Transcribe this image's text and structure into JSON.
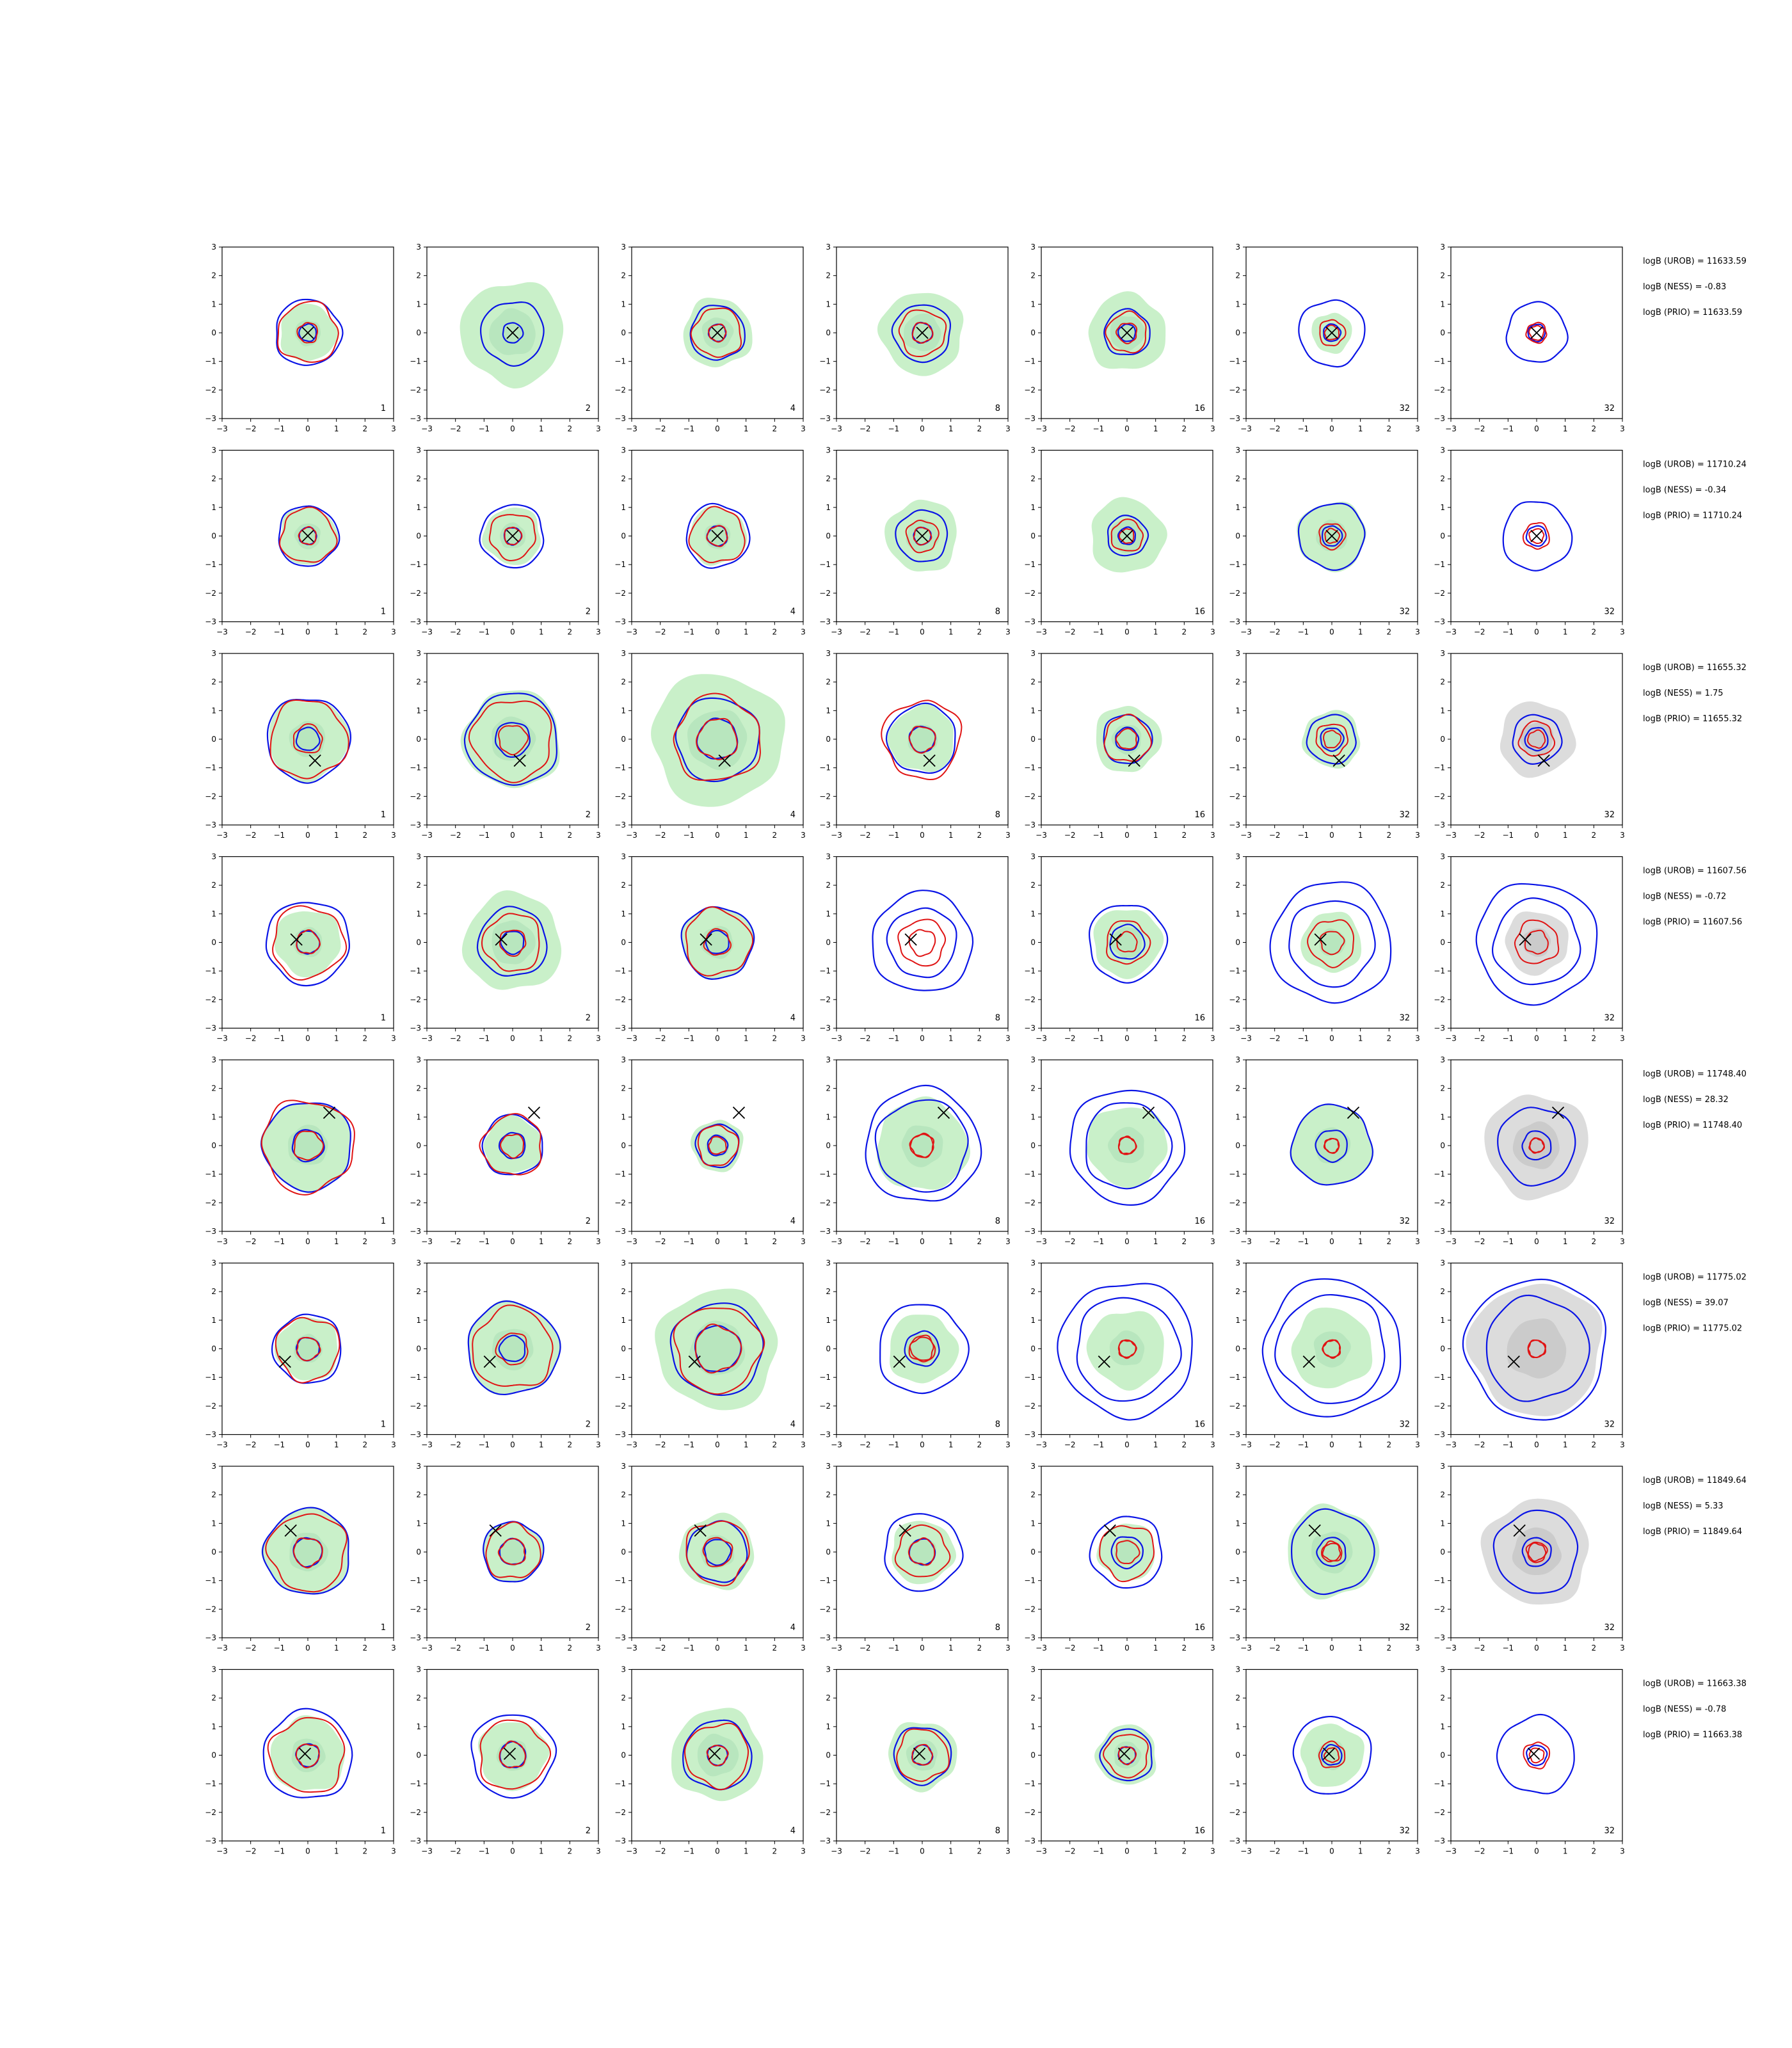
{
  "colors": {
    "sample_fill": "#c9f0c9",
    "sample_fill_core": "#a9dfb4",
    "prior_fill": "#dcdcdc",
    "prior_fill_core": "#bdbdbd",
    "contour_blue": "#0a14e6",
    "contour_red": "#e01414",
    "marker": "#000000"
  },
  "chart_data": {
    "type": "contour-grid",
    "rows": 8,
    "cols": 7,
    "xlim": [
      -3,
      3
    ],
    "ylim": [
      -3,
      3
    ],
    "xticks": [
      "−3",
      "−2",
      "−1",
      "0",
      "1",
      "2",
      "3"
    ],
    "yticks": [
      "3",
      "2",
      "1",
      "0",
      "−1",
      "−2",
      "−3"
    ],
    "column_labels": [
      "1",
      "2",
      "4",
      "8",
      "16",
      "32",
      "32"
    ],
    "rows_data": [
      {
        "marker": [
          0,
          0
        ],
        "annotations": [
          "logB (UROB) = 11633.59",
          "logB (NESS) = -0.83",
          "logB (PRIO) = 11633.59"
        ],
        "panels": [
          {
            "fill": 1.0,
            "blue": [
              1.15,
              0.3
            ],
            "red": [
              1.05,
              0.35
            ]
          },
          {
            "fill": 1.8,
            "blue": [
              1.1,
              0.35
            ],
            "red": []
          },
          {
            "fill": 1.2,
            "blue": [
              0.95,
              0.3
            ],
            "red": [
              0.85,
              0.3
            ]
          },
          {
            "fill": 1.45,
            "blue": [
              1.0,
              0.35
            ],
            "red": [
              0.8,
              0.35
            ]
          },
          {
            "fill": 1.35,
            "blue": [
              0.8,
              0.3
            ],
            "red": [
              0.7,
              0.35
            ]
          },
          {
            "fill": 0.7,
            "blue": [
              1.15,
              0.3
            ],
            "red": [
              0.45,
              0.25
            ]
          },
          {
            "fill": 0.0,
            "blue": [
              1.05,
              0.3
            ],
            "red": [
              0.35,
              0.25
            ]
          }
        ]
      },
      {
        "marker": [
          0,
          0
        ],
        "annotations": [
          "logB (UROB) = 11710.24",
          "logB (NESS) = -0.34",
          "logB (PRIO) = 11710.24"
        ],
        "panels": [
          {
            "fill": 1.0,
            "blue": [
              1.05,
              0.3
            ],
            "red": [
              0.95,
              0.3
            ]
          },
          {
            "fill": 1.0,
            "blue": [
              1.1,
              0.3
            ],
            "red": [
              0.8,
              0.3
            ]
          },
          {
            "fill": 1.0,
            "blue": [
              1.1,
              0.35
            ],
            "red": [
              0.95,
              0.35
            ]
          },
          {
            "fill": 1.25,
            "blue": [
              0.9,
              0.3
            ],
            "red": [
              0.55,
              0.3
            ]
          },
          {
            "fill": 1.3,
            "blue": [
              0.7,
              0.3
            ],
            "red": [
              0.55,
              0.25
            ]
          },
          {
            "fill": 1.2,
            "blue": [
              1.15,
              0.35
            ],
            "red": [
              0.45,
              0.25
            ]
          },
          {
            "fill": 0.0,
            "blue": [
              1.2,
              0.35
            ],
            "red": [
              0.45,
              0.25
            ]
          }
        ]
      },
      {
        "marker": [
          0.25,
          -0.75
        ],
        "annotations": [
          "logB (UROB) = 11655.32",
          "logB (NESS) = 1.75",
          "logB (PRIO) = 11655.32"
        ],
        "panels": [
          {
            "fill": 1.4,
            "blue": [
              1.45,
              0.4
            ],
            "red": [
              1.35,
              0.5
            ]
          },
          {
            "fill": 1.7,
            "blue": [
              1.6,
              0.6
            ],
            "red": [
              1.4,
              0.5
            ]
          },
          {
            "fill": 2.3,
            "blue": [
              1.45,
              0.7
            ],
            "red": [
              1.5,
              0.7
            ]
          },
          {
            "fill": 1.15,
            "blue": [
              1.2,
              0.45
            ],
            "red": [
              1.35,
              0.45
            ]
          },
          {
            "fill": 1.15,
            "blue": [
              0.85,
              0.4
            ],
            "red": [
              0.8,
              0.35
            ]
          },
          {
            "fill": 1.0,
            "blue": [
              0.85,
              0.4
            ],
            "red": [
              0.55,
              0.3
            ]
          },
          {
            "fill": 1.3,
            "blue": [
              0.85,
              0.4
            ],
            "red": [
              0.6,
              0.3
            ],
            "prior": true
          }
        ]
      },
      {
        "marker": [
          -0.4,
          0.1
        ],
        "annotations": [
          "logB (UROB) = 11607.56",
          "logB (NESS) = -0.72",
          "logB (PRIO) = 11607.56"
        ],
        "panels": [
          {
            "fill": 1.15,
            "blue": [
              1.45,
              0.4
            ],
            "red": [
              1.25,
              0.4
            ]
          },
          {
            "fill": 1.7,
            "blue": [
              1.2,
              0.4
            ],
            "red": [
              1.0,
              0.45
            ]
          },
          {
            "fill": 1.25,
            "blue": [
              1.25,
              0.4
            ],
            "red": [
              1.15,
              0.45
            ]
          },
          {
            "fill": 0.0,
            "blue": [
              1.75,
              1.2
            ],
            "red": [
              0.8,
              0.45
            ]
          },
          {
            "fill": 1.2,
            "blue": [
              1.35,
              0.6
            ],
            "red": [
              0.75,
              0.35
            ]
          },
          {
            "fill": 1.05,
            "blue": [
              2.1,
              1.5
            ],
            "red": [
              0.8,
              0.4
            ]
          },
          {
            "fill": 1.1,
            "blue": [
              2.1,
              1.5
            ],
            "red": [
              0.75,
              0.4
            ],
            "prior": true
          }
        ]
      },
      {
        "marker": [
          0.75,
          1.15
        ],
        "annotations": [
          "logB (UROB) = 11748.40",
          "logB (NESS) = 28.32",
          "logB (PRIO) = 11748.40"
        ],
        "panels": [
          {
            "fill": 1.55,
            "blue": [
              1.55,
              0.55
            ],
            "red": [
              1.6,
              0.5
            ]
          },
          {
            "fill": 1.0,
            "blue": [
              1.05,
              0.45
            ],
            "red": [
              1.05,
              0.4
            ]
          },
          {
            "fill": 0.9,
            "blue": [
              0.75,
              0.35
            ],
            "red": [
              0.7,
              0.3
            ]
          },
          {
            "fill": 1.6,
            "blue": [
              2.0,
              1.6
            ],
            "red": [
              0.4,
              0.4
            ]
          },
          {
            "fill": 1.4,
            "blue": [
              2.0,
              1.5
            ],
            "red": [
              0.3,
              0.3
            ]
          },
          {
            "fill": 1.4,
            "blue": [
              1.4,
              0.55
            ],
            "red": [
              0.25,
              0.25
            ]
          },
          {
            "fill": 1.8,
            "blue": [
              1.35,
              0.5
            ],
            "red": [
              0.25,
              0.25
            ],
            "prior": true
          }
        ]
      },
      {
        "marker": [
          -0.8,
          -0.45
        ],
        "annotations": [
          "logB (UROB) = 11775.02",
          "logB (NESS) = 39.07",
          "logB (PRIO) = 11775.02"
        ],
        "panels": [
          {
            "fill": 1.1,
            "blue": [
              1.2,
              0.4
            ],
            "red": [
              1.1,
              0.4
            ]
          },
          {
            "fill": 1.6,
            "blue": [
              1.6,
              0.45
            ],
            "red": [
              1.4,
              0.55
            ]
          },
          {
            "fill": 2.1,
            "blue": [
              1.6,
              0.8
            ],
            "red": [
              1.5,
              0.8
            ]
          },
          {
            "fill": 1.2,
            "blue": [
              1.55,
              0.6
            ],
            "red": [
              0.45,
              0.4
            ]
          },
          {
            "fill": 1.35,
            "blue": [
              2.35,
              1.8
            ],
            "red": [
              0.3,
              0.3
            ]
          },
          {
            "fill": 1.4,
            "blue": [
              2.4,
              1.9
            ],
            "red": [
              0.3,
              0.3
            ]
          },
          {
            "fill": 2.3,
            "blue": [
              2.45,
              1.8
            ],
            "red": [
              0.3,
              0.3
            ],
            "prior": true
          }
        ]
      },
      {
        "marker": [
          -0.6,
          0.75
        ],
        "annotations": [
          "logB (UROB) = 11849.64",
          "logB (NESS) = 5.33",
          "logB (PRIO) = 11849.64"
        ],
        "panels": [
          {
            "fill": 1.5,
            "blue": [
              1.5,
              0.5
            ],
            "red": [
              1.35,
              0.5
            ]
          },
          {
            "fill": 1.05,
            "blue": [
              1.05,
              0.45
            ],
            "red": [
              0.95,
              0.45
            ]
          },
          {
            "fill": 1.3,
            "blue": [
              1.05,
              0.45
            ],
            "red": [
              1.1,
              0.5
            ]
          },
          {
            "fill": 1.1,
            "blue": [
              1.35,
              0.45
            ],
            "red": [
              0.9,
              0.45
            ]
          },
          {
            "fill": 1.0,
            "blue": [
              1.25,
              0.55
            ],
            "red": [
              0.95,
              0.4
            ]
          },
          {
            "fill": 1.6,
            "blue": [
              1.45,
              0.5
            ],
            "red": [
              0.35,
              0.3
            ]
          },
          {
            "fill": 1.85,
            "blue": [
              1.45,
              0.5
            ],
            "red": [
              0.35,
              0.3
            ],
            "prior": true
          }
        ]
      },
      {
        "marker": [
          -0.1,
          0.05
        ],
        "annotations": [
          "logB (UROB) = 11663.38",
          "logB (NESS) = -0.78",
          "logB (PRIO) = 11663.38"
        ],
        "panels": [
          {
            "fill": 1.3,
            "blue": [
              1.55,
              0.4
            ],
            "red": [
              1.3,
              0.4
            ]
          },
          {
            "fill": 1.2,
            "blue": [
              1.45,
              0.45
            ],
            "red": [
              1.2,
              0.45
            ]
          },
          {
            "fill": 1.6,
            "blue": [
              1.2,
              0.35
            ],
            "red": [
              1.1,
              0.35
            ]
          },
          {
            "fill": 1.2,
            "blue": [
              1.0,
              0.35
            ],
            "red": [
              0.9,
              0.35
            ]
          },
          {
            "fill": 1.05,
            "blue": [
              0.9,
              0.3
            ],
            "red": [
              0.75,
              0.3
            ]
          },
          {
            "fill": 1.1,
            "blue": [
              1.35,
              0.35
            ],
            "red": [
              0.45,
              0.25
            ]
          },
          {
            "fill": 0.0,
            "blue": [
              1.35,
              0.35
            ],
            "red": [
              0.45,
              0.25
            ]
          }
        ]
      }
    ]
  }
}
